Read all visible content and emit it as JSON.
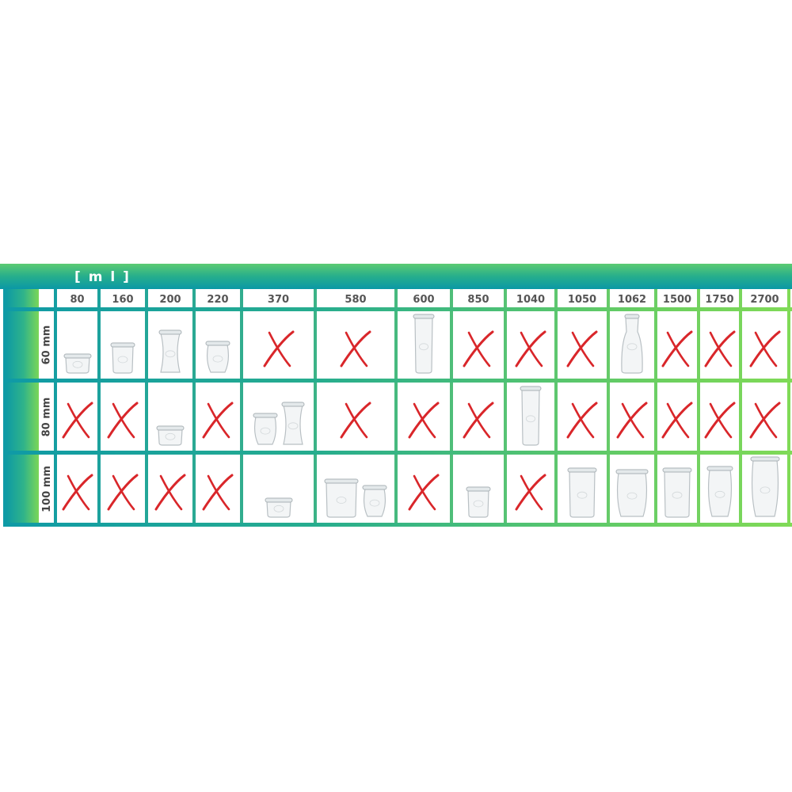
{
  "header": {
    "unit_label": "[ m l ]"
  },
  "colors": {
    "cross": "#d9262a",
    "grid_start": "#0f9aa6",
    "grid_end": "#80da57",
    "header_text": "#555555"
  },
  "columns": [
    "80",
    "160",
    "200",
    "220",
    "370",
    "580",
    "600",
    "850",
    "1040",
    "1050",
    "1062",
    "1500",
    "1750",
    "2700"
  ],
  "rows": [
    {
      "label": "60 mm",
      "cells": [
        [
          "jar-low"
        ],
        [
          "jar-mid"
        ],
        [
          "jar-deli"
        ],
        [
          "jar-tulip"
        ],
        "x",
        "x",
        [
          "jar-tall"
        ],
        "x",
        "x",
        "x",
        [
          "jar-bottle"
        ],
        "x",
        "x",
        "x"
      ]
    },
    {
      "label": "80 mm",
      "cells": [
        "x",
        "x",
        [
          "jar-low"
        ],
        "x",
        [
          "jar-tulip",
          "jar-deli"
        ],
        "x",
        "x",
        "x",
        [
          "jar-tall"
        ],
        "x",
        "x",
        "x",
        "x",
        "x"
      ]
    },
    {
      "label": "100 mm",
      "cells": [
        "x",
        "x",
        "x",
        "x",
        [
          "jar-low"
        ],
        [
          "jar-mold",
          "jar-tulip"
        ],
        "x",
        [
          "jar-mid"
        ],
        "x",
        [
          "jar-mid-tall"
        ],
        [
          "jar-tulip-big"
        ],
        [
          "jar-mid-tall"
        ],
        [
          "jar-tulip-tall"
        ],
        [
          "jar-tulip-xl"
        ]
      ]
    }
  ]
}
